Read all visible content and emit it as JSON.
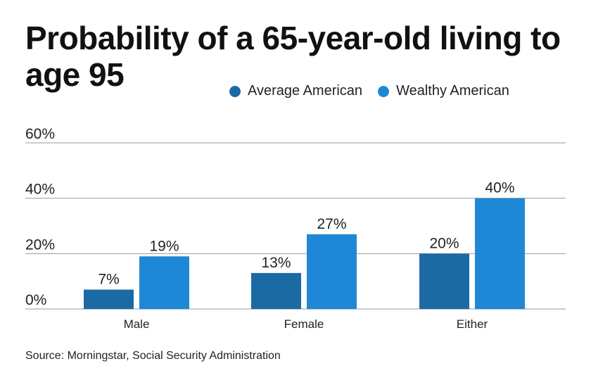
{
  "title": "Probability of a 65-year-old living to age 95",
  "source": "Source: Morningstar, Social Security Administration",
  "colors": {
    "average": "#1c6aa3",
    "wealthy": "#1f88d6",
    "grid": "#999999"
  },
  "chart_data": {
    "type": "bar",
    "title": "Probability of a 65-year-old living to age 95",
    "categories": [
      "Male",
      "Female",
      "Either"
    ],
    "series": [
      {
        "name": "Average American",
        "values": [
          7,
          13,
          20
        ],
        "labels": [
          "7%",
          "13%",
          "20%"
        ]
      },
      {
        "name": "Wealthy American",
        "values": [
          19,
          27,
          40
        ],
        "labels": [
          "19%",
          "27%",
          "40%"
        ]
      }
    ],
    "yticks": [
      0,
      20,
      40,
      60
    ],
    "ytick_labels": [
      "0%",
      "20%",
      "40%",
      "60%"
    ],
    "ylim": [
      0,
      60
    ],
    "xlabel": "",
    "ylabel": "",
    "grid": true,
    "legend": "top-right"
  }
}
